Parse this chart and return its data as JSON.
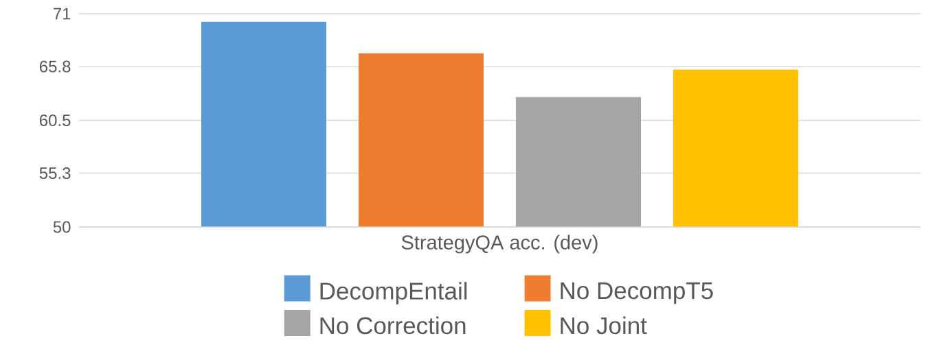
{
  "chart_data": {
    "type": "bar",
    "categories": [
      "StrategyQA acc. (dev)"
    ],
    "series": [
      {
        "name": "DecompEntail",
        "color": "#5b9bd5",
        "values": [
          70.2
        ]
      },
      {
        "name": "No DecompT5",
        "color": "#ed7d31",
        "values": [
          67.1
        ]
      },
      {
        "name": "No Correction",
        "color": "#a5a5a5",
        "values": [
          62.8
        ]
      },
      {
        "name": "No Joint",
        "color": "#ffc000",
        "values": [
          65.5
        ]
      }
    ],
    "ylim": [
      50,
      71
    ],
    "yticks": [
      50,
      55.3,
      60.5,
      65.8,
      71
    ],
    "grid": "y",
    "legend": "bottom"
  }
}
